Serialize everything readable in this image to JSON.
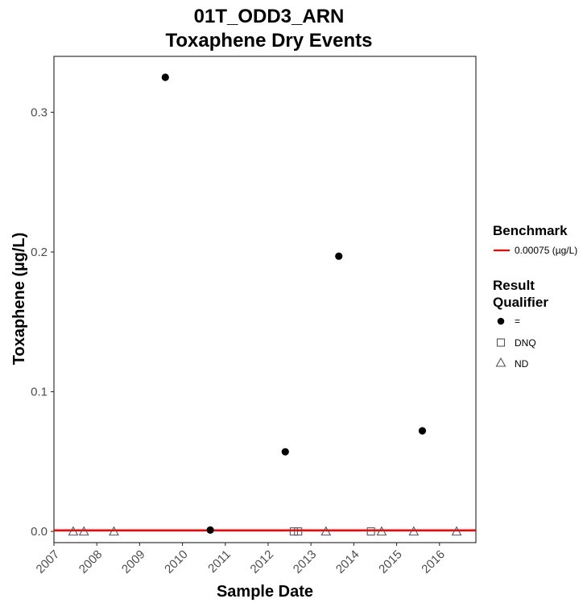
{
  "chart_data": {
    "type": "scatter",
    "title": [
      "01T_ODD3_ARN",
      "Toxaphene   Dry Events"
    ],
    "xlabel": "Sample Date",
    "ylabel": "Toxaphene (µg/L)",
    "xlim": [
      2007.0,
      2016.85
    ],
    "ylim": [
      -0.008,
      0.34
    ],
    "x_ticks": [
      2007,
      2008,
      2009,
      2010,
      2011,
      2012,
      2013,
      2014,
      2015,
      2016
    ],
    "x_tick_labels": [
      "2007",
      "2008",
      "2009",
      "2010",
      "2011",
      "2012",
      "2013",
      "2014",
      "2015",
      "2016"
    ],
    "y_ticks": [
      0.0,
      0.1,
      0.2,
      0.3
    ],
    "y_tick_labels": [
      "0.0",
      "0.1",
      "0.2",
      "0.3"
    ],
    "grid": false,
    "benchmark": {
      "value": 0.00075,
      "label": "0.00075 (µg/L)",
      "color": "#ff0000"
    },
    "series": [
      {
        "name": "=",
        "marker": "filled-circle",
        "color": "#000000",
        "points": [
          {
            "x": 2009.6,
            "y": 0.325
          },
          {
            "x": 2010.65,
            "y": 0.001
          },
          {
            "x": 2012.4,
            "y": 0.057
          },
          {
            "x": 2013.65,
            "y": 0.197
          },
          {
            "x": 2015.6,
            "y": 0.072
          }
        ]
      },
      {
        "name": "DNQ",
        "marker": "open-square",
        "color": "#555555",
        "points": [
          {
            "x": 2012.6,
            "y": 0.0
          },
          {
            "x": 2012.7,
            "y": 0.0
          },
          {
            "x": 2014.4,
            "y": 0.0
          }
        ]
      },
      {
        "name": "ND",
        "marker": "open-triangle",
        "color": "#555555",
        "points": [
          {
            "x": 2007.45,
            "y": 0.0
          },
          {
            "x": 2007.7,
            "y": 0.0
          },
          {
            "x": 2008.4,
            "y": 0.0
          },
          {
            "x": 2013.35,
            "y": 0.0
          },
          {
            "x": 2014.65,
            "y": 0.0
          },
          {
            "x": 2015.4,
            "y": 0.0
          },
          {
            "x": 2016.4,
            "y": 0.0
          }
        ]
      }
    ],
    "legend": {
      "placement": "right",
      "benchmark_title": "Benchmark",
      "qualifier_title": [
        "Result",
        "Qualifier"
      ]
    }
  }
}
